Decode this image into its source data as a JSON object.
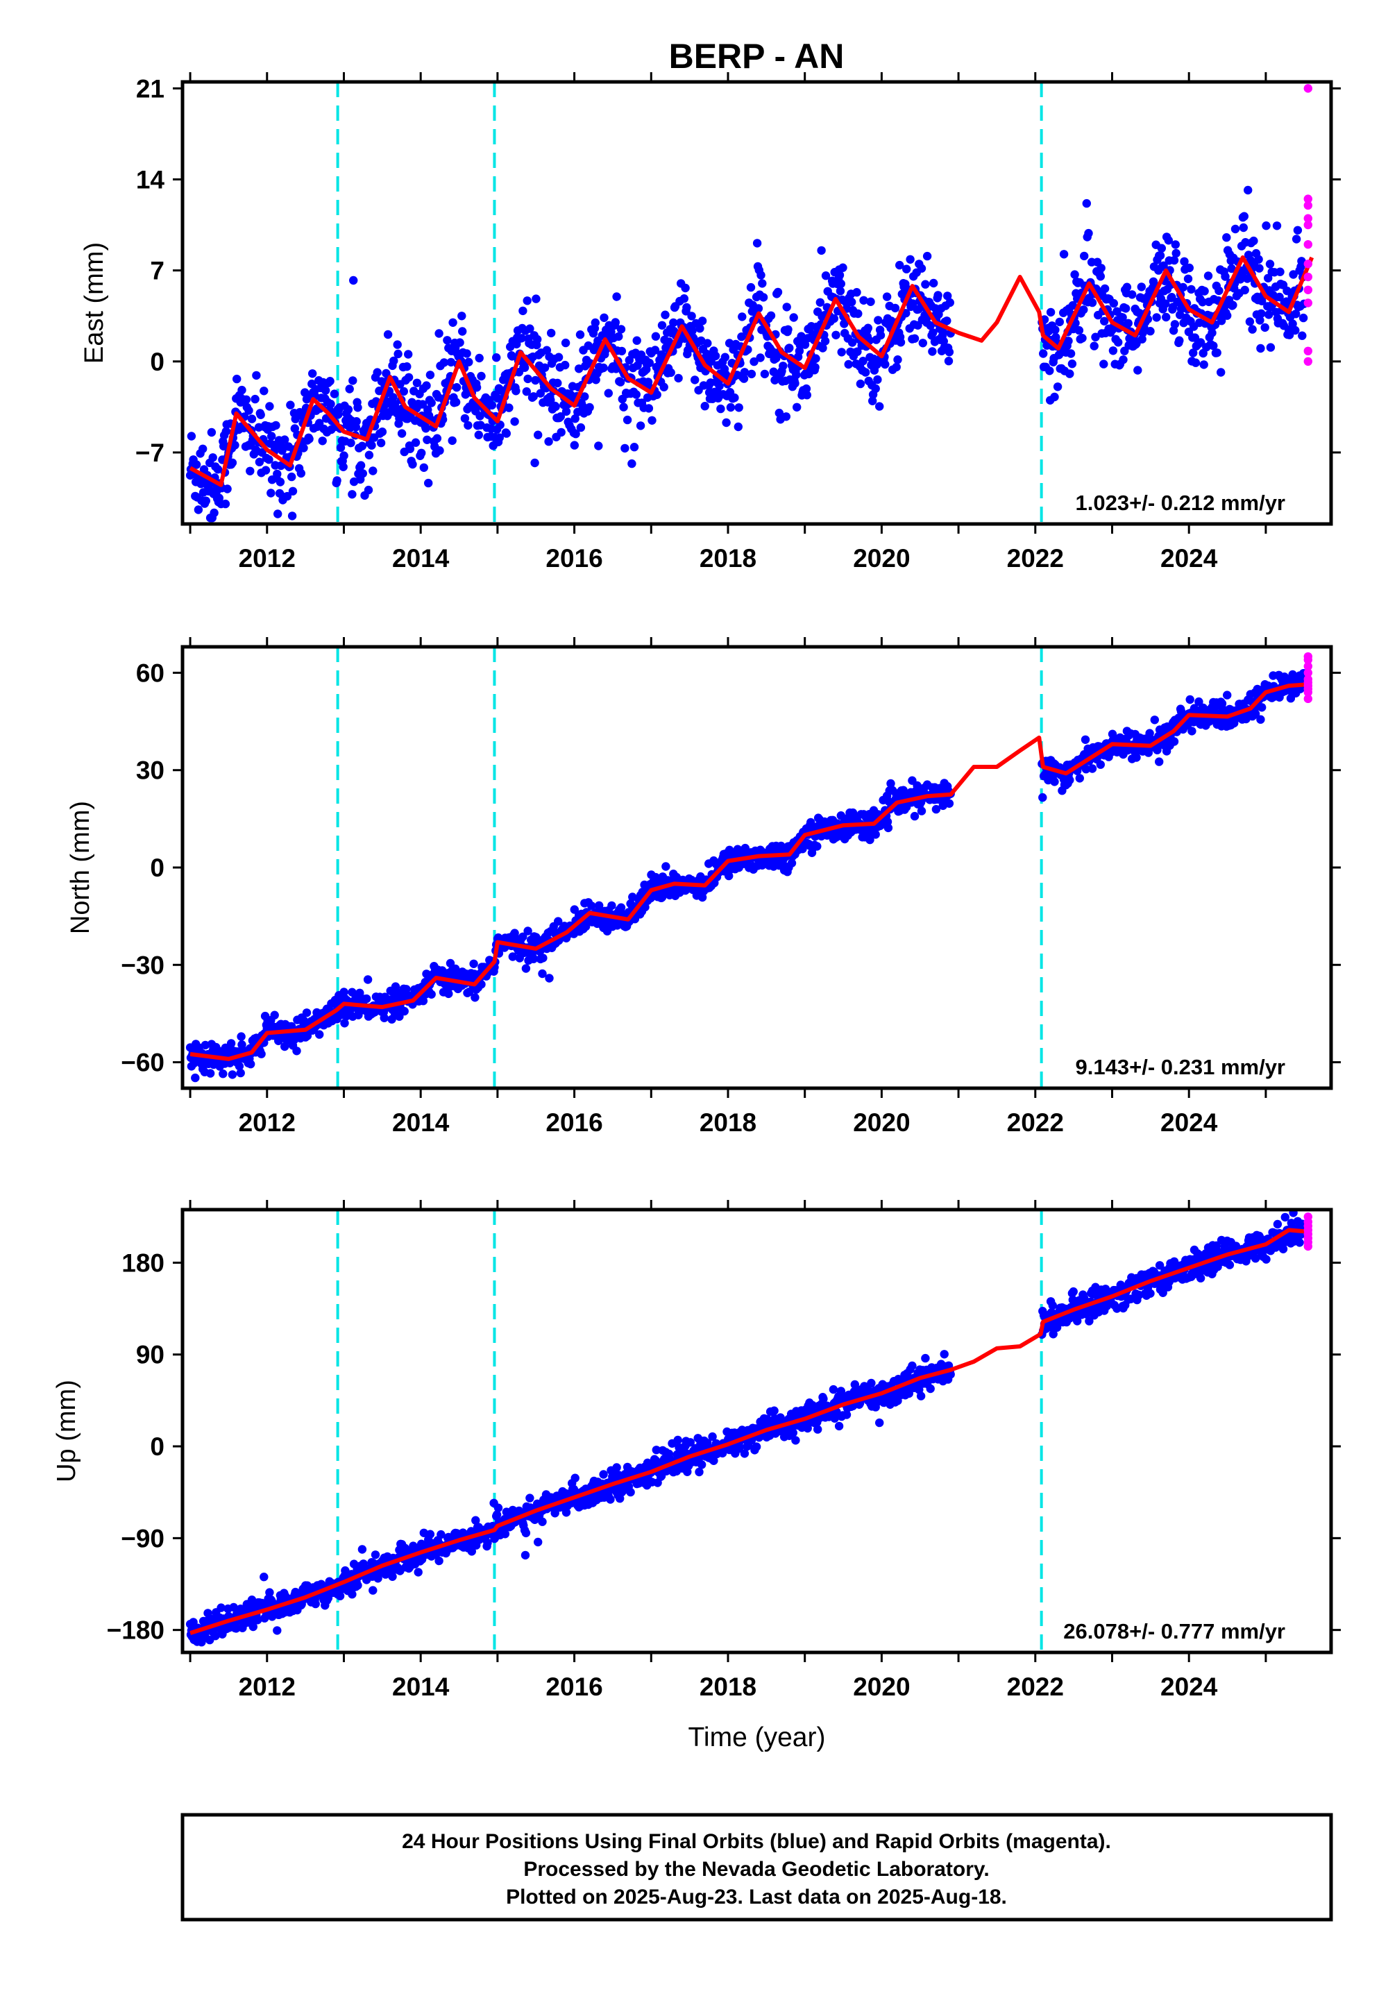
{
  "title": "BERP - AN",
  "colors": {
    "final_orbits": "#0000ff",
    "rapid_orbits": "#ff00ff",
    "model": "#ff0000",
    "event_lines": "#00e5e5"
  },
  "chart_data": [
    {
      "type": "scatter",
      "name": "east",
      "ylabel": "East (mm)",
      "xlabel": "",
      "xlim": [
        2010.9,
        2025.85
      ],
      "ylim": [
        -12.5,
        21.5
      ],
      "xticks": [
        2012,
        2014,
        2016,
        2018,
        2020,
        2022,
        2024
      ],
      "yticks": [
        -7,
        0,
        7,
        14,
        21
      ],
      "ytick_labels": [
        "−7",
        "0",
        "7",
        "14",
        "21"
      ],
      "rate": "1.023+/- 0.212 mm/yr",
      "event_lines_x": [
        2012.92,
        2014.96,
        2022.08
      ],
      "gaps": [
        [
          2020.9,
          2022.08
        ]
      ],
      "trend": {
        "x": [
          2011.0,
          2025.5
        ],
        "y": [
          -7.0,
          5.5
        ]
      },
      "seasonal_amplitude": 3.2,
      "scatter_noise": 1.8,
      "model_curve": {
        "x": [
          2011.0,
          2011.4,
          2011.6,
          2012.0,
          2012.3,
          2012.6,
          2012.8,
          2013.0,
          2013.3,
          2013.6,
          2013.8,
          2014.2,
          2014.5,
          2014.7,
          2015.0,
          2015.3,
          2015.7,
          2016.0,
          2016.4,
          2016.7,
          2017.0,
          2017.4,
          2017.7,
          2018.0,
          2018.4,
          2018.7,
          2019.0,
          2019.4,
          2019.7,
          2020.0,
          2020.4,
          2020.7,
          2021.0,
          2021.3,
          2021.5,
          2021.8,
          2022.05,
          2022.1,
          2022.3,
          2022.7,
          2023.0,
          2023.3,
          2023.7,
          2024.0,
          2024.3,
          2024.7,
          2025.0,
          2025.3,
          2025.6
        ],
        "y": [
          -8.2,
          -9.5,
          -4.0,
          -6.8,
          -8.0,
          -2.9,
          -4.0,
          -5.4,
          -6.0,
          -1.2,
          -3.5,
          -5.0,
          0.0,
          -2.8,
          -4.6,
          0.7,
          -2.1,
          -3.4,
          1.7,
          -1.3,
          -2.4,
          2.7,
          -0.3,
          -1.7,
          3.7,
          0.7,
          -0.5,
          4.8,
          1.9,
          0.4,
          5.8,
          3.0,
          2.2,
          1.6,
          3.0,
          6.5,
          3.8,
          2.0,
          1.0,
          6.0,
          3.0,
          2.0,
          7.0,
          4.0,
          3.0,
          8.0,
          5.0,
          3.8,
          8.0
        ]
      },
      "rapid_points": {
        "x": 2025.55,
        "y": [
          0.0,
          0.8,
          4.5,
          5.5,
          6.5,
          7.5,
          9.0,
          10.5,
          11.0,
          12.0,
          12.5,
          21.0
        ]
      }
    },
    {
      "type": "scatter",
      "name": "north",
      "ylabel": "North (mm)",
      "xlabel": "",
      "xlim": [
        2010.9,
        2025.85
      ],
      "ylim": [
        -68,
        68
      ],
      "xticks": [
        2012,
        2014,
        2016,
        2018,
        2020,
        2022,
        2024
      ],
      "yticks": [
        -60,
        -30,
        0,
        30,
        60
      ],
      "ytick_labels": [
        "−60",
        "−30",
        "0",
        "30",
        "60"
      ],
      "rate": "9.143+/- 0.231 mm/yr",
      "event_lines_x": [
        2012.92,
        2014.96,
        2022.08
      ],
      "gaps": [
        [
          2020.9,
          2022.08
        ]
      ],
      "scatter_noise": 2.0,
      "model_curve": {
        "x": [
          2011.0,
          2011.5,
          2011.8,
          2012.0,
          2012.5,
          2012.9,
          2013.0,
          2013.5,
          2013.9,
          2014.2,
          2014.7,
          2014.96,
          2015.0,
          2015.5,
          2015.9,
          2016.2,
          2016.7,
          2017.0,
          2017.3,
          2017.7,
          2018.0,
          2018.4,
          2018.8,
          2019.0,
          2019.5,
          2019.9,
          2020.2,
          2020.6,
          2020.9,
          2021.2,
          2021.5,
          2021.8,
          2022.05,
          2022.1,
          2022.4,
          2022.8,
          2023.0,
          2023.5,
          2023.8,
          2024.0,
          2024.5,
          2024.8,
          2025.0,
          2025.3,
          2025.6
        ],
        "y": [
          -57.5,
          -59.0,
          -57.0,
          -51.0,
          -50.0,
          -44.0,
          -42.0,
          -43.0,
          -41.0,
          -34.0,
          -36.0,
          -29.0,
          -23.0,
          -25.0,
          -20.0,
          -14.0,
          -16.0,
          -7.0,
          -5.0,
          -5.5,
          2.0,
          3.5,
          4.0,
          10.0,
          13.0,
          13.5,
          20.0,
          22.0,
          22.5,
          31.0,
          31.0,
          36.0,
          40.0,
          31.0,
          29.0,
          35.0,
          38.0,
          37.5,
          42.0,
          47.0,
          46.5,
          49.0,
          54.0,
          56.0,
          56.5
        ]
      },
      "rapid_points": {
        "x": 2025.55,
        "y": [
          52.0,
          54.0,
          55.0,
          56.0,
          57.0,
          58.0,
          60.0,
          62.0,
          64.0,
          65.0
        ]
      }
    },
    {
      "type": "scatter",
      "name": "up",
      "ylabel": "Up (mm)",
      "xlabel": "Time (year)",
      "xlim": [
        2010.9,
        2025.85
      ],
      "ylim": [
        -202,
        232
      ],
      "xticks": [
        2012,
        2014,
        2016,
        2018,
        2020,
        2022,
        2024
      ],
      "yticks": [
        -180,
        -90,
        0,
        90,
        180
      ],
      "ytick_labels": [
        "−180",
        "−90",
        "0",
        "90",
        "180"
      ],
      "rate": "26.078+/- 0.777 mm/yr",
      "event_lines_x": [
        2012.92,
        2014.96,
        2022.08
      ],
      "gaps": [
        [
          2020.9,
          2022.08
        ]
      ],
      "scatter_noise": 6.5,
      "model_curve": {
        "x": [
          2011.0,
          2011.5,
          2012.0,
          2012.5,
          2013.0,
          2013.5,
          2014.0,
          2014.5,
          2014.96,
          2015.0,
          2015.5,
          2016.0,
          2016.5,
          2017.0,
          2017.5,
          2018.0,
          2018.5,
          2019.0,
          2019.5,
          2020.0,
          2020.5,
          2020.9,
          2021.2,
          2021.5,
          2021.8,
          2022.07,
          2022.1,
          2022.5,
          2023.0,
          2023.5,
          2024.0,
          2024.5,
          2025.0,
          2025.3,
          2025.6
        ],
        "y": [
          -183.0,
          -171.0,
          -160.0,
          -148.0,
          -133.0,
          -117.0,
          -104.0,
          -92.0,
          -82.0,
          -78.0,
          -63.0,
          -50.0,
          -37.0,
          -25.0,
          -10.0,
          2.0,
          16.0,
          27.0,
          41.0,
          52.0,
          67.0,
          75.0,
          83.0,
          96.0,
          98.0,
          110.0,
          122.0,
          134.0,
          147.0,
          162.0,
          175.0,
          188.0,
          198.0,
          212.0,
          210.0
        ]
      },
      "rapid_points": {
        "x": 2025.55,
        "y": [
          196.0,
          200.0,
          204.0,
          208.0,
          212.0,
          216.0,
          220.0,
          225.0
        ]
      }
    }
  ],
  "footer": {
    "line1": "24 Hour Positions Using Final Orbits (blue) and Rapid Orbits (magenta).",
    "line2": "Processed by the Nevada Geodetic Laboratory.",
    "line3": "Plotted on 2025-Aug-23. Last data on 2025-Aug-18."
  }
}
